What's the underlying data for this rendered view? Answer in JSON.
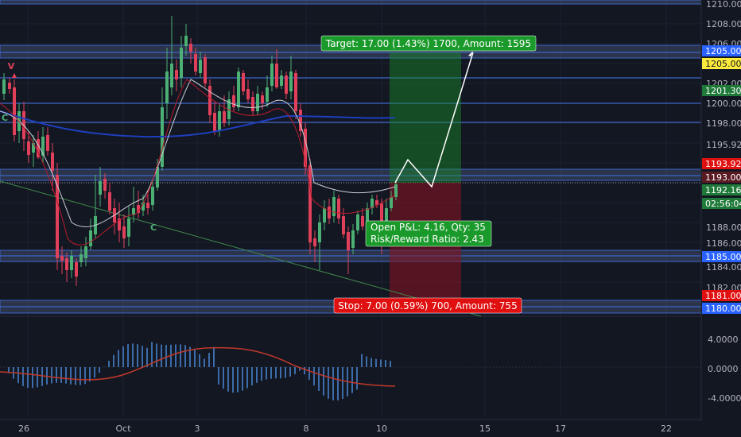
{
  "colors": {
    "background": "#131722",
    "up": "#4caf73",
    "down": "#e0405a",
    "target": "#1a8f2a",
    "stop": "#e01010",
    "level_line": "#3d66c8",
    "zone": "#5a6a96",
    "price_tag": "#1f7a3a"
  },
  "price_axis": {
    "ticks": [
      "1210.00",
      "1208.00",
      "1206.00",
      "1202.00",
      "1200.00",
      "1198.00",
      "1195.92",
      "1188.00",
      "1186.00",
      "1184.00",
      "1182.00"
    ],
    "tags": [
      {
        "text": "1205.00",
        "kind": "blue"
      },
      {
        "text": "1205.00",
        "kind": "yellow"
      },
      {
        "text": "1201.30",
        "kind": "green"
      },
      {
        "text": "1193.92",
        "kind": "red"
      },
      {
        "text": "1193.00",
        "kind": "red-dark"
      },
      {
        "text": "1192.16",
        "kind": "green"
      },
      {
        "text": "02:56:04",
        "kind": "green"
      },
      {
        "text": "1185.00",
        "kind": "blue"
      },
      {
        "text": "1181.00",
        "kind": "red"
      },
      {
        "text": "1180.00",
        "kind": "blue"
      }
    ]
  },
  "osc_axis": {
    "ticks": [
      "4.0000",
      "0.0000",
      "-4.0000"
    ]
  },
  "time_axis": {
    "labels": [
      "26",
      "Oct",
      "3",
      "8",
      "10",
      "15",
      "17",
      "22"
    ]
  },
  "position": {
    "target_label": "Target: 17.00 (1.43%) 1700, Amount: 1595",
    "stop_label": "Stop: 7.00 (0.59%) 700, Amount: 755",
    "pnl_line1": "Open P&L: 4.16, Qty: 35",
    "pnl_line2": "Risk/Reward Ratio: 2.43"
  },
  "signals": {
    "v_marker": "V",
    "c_marker_left": "C",
    "c_marker_bottom": "C"
  }
}
